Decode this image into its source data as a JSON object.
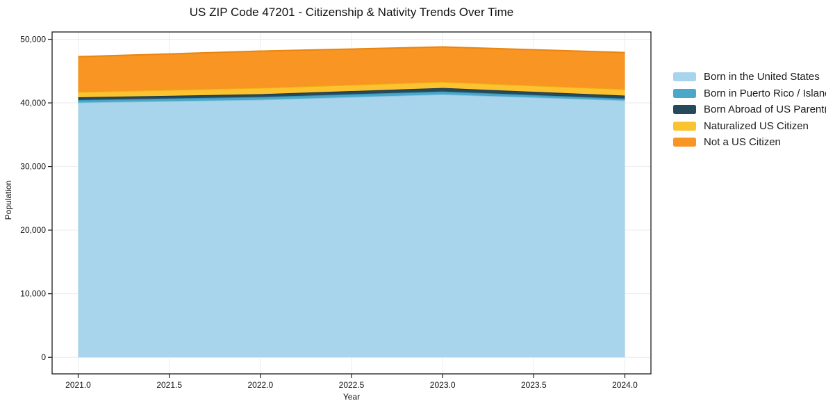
{
  "chart_data": {
    "type": "area",
    "stacked": true,
    "title": "US ZIP Code 47201 - Citizenship & Nativity Trends Over Time",
    "xlabel": "Year",
    "ylabel": "Population",
    "x": [
      2021,
      2022,
      2023,
      2024
    ],
    "series": [
      {
        "name": "Born in the United States",
        "color": "#a8d5ec",
        "edge": "#8fc4e0",
        "values": [
          40050,
          40490,
          41330,
          40380
        ]
      },
      {
        "name": "Born in Puerto Rico / Islands",
        "color": "#4aa9c9",
        "edge": "#3596b8",
        "values": [
          410,
          440,
          470,
          300
        ]
      },
      {
        "name": "Born Abroad of US Parent(s)",
        "color": "#27495c",
        "edge": "#1c3848",
        "values": [
          420,
          440,
          550,
          470
        ]
      },
      {
        "name": "Naturalized US Citizen",
        "color": "#fcc330",
        "edge": "#f0b115",
        "values": [
          830,
          980,
          950,
          980
        ]
      },
      {
        "name": "Not a US Citizen",
        "color": "#f89523",
        "edge": "#ea8410",
        "values": [
          5560,
          5790,
          5500,
          5790
        ]
      }
    ],
    "totals": [
      47270,
      48140,
      48800,
      47920
    ],
    "x_ticks": {
      "values": [
        2021.0,
        2021.5,
        2022.0,
        2022.5,
        2023.0,
        2023.5,
        2024.0
      ],
      "labels": [
        "2021.0",
        "2021.5",
        "2022.0",
        "2022.5",
        "2023.0",
        "2023.5",
        "2024.0"
      ]
    },
    "y_ticks": {
      "values": [
        0,
        10000,
        20000,
        30000,
        40000,
        50000
      ],
      "labels": [
        "0",
        "10,000",
        "20,000",
        "30,000",
        "40,000",
        "50,000"
      ]
    },
    "xlim": [
      2020.857,
      2024.143
    ],
    "ylim": [
      -2600,
      51150
    ],
    "grid": true,
    "gridline_color": "#ebebeb",
    "frame_color": "#1a1a1a",
    "legend_position": "right-outside"
  }
}
